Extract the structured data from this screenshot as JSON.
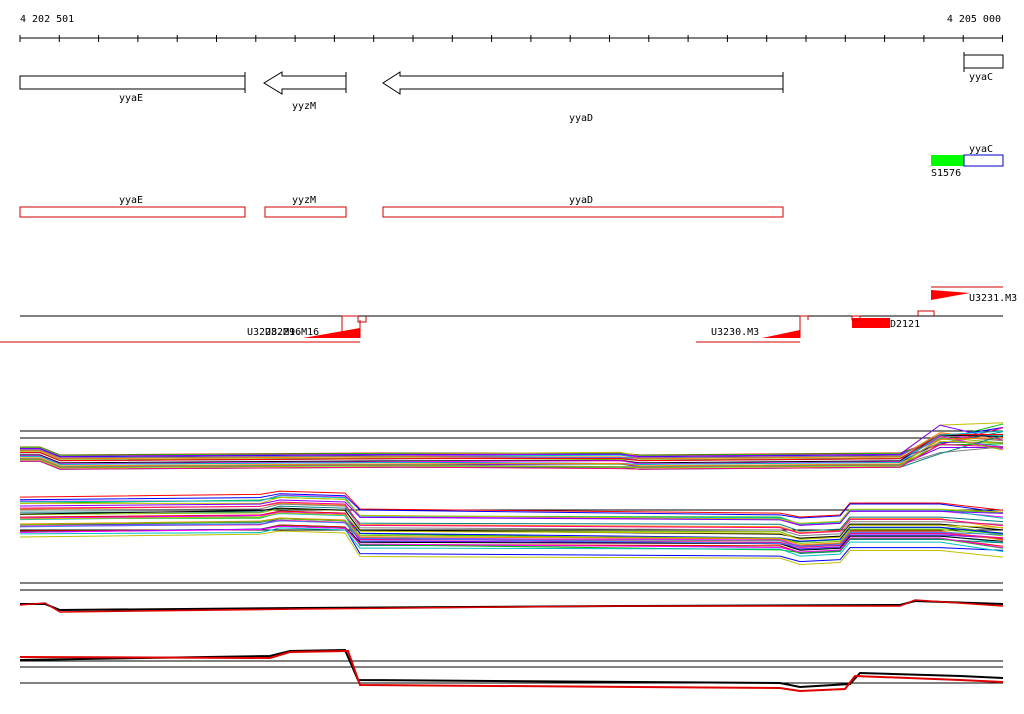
{
  "ruler": {
    "start": "4 202 501",
    "end": "4 205 000"
  },
  "genes": {
    "yyaE": "yyaE",
    "yyzM": "yyzM",
    "yyaD": "yyaD",
    "yyaC": "yyaC"
  },
  "track2": {
    "gene": "yyaC",
    "feature": "S1576"
  },
  "track3": {
    "yyaE": "yyaE",
    "yyzM": "yyzM",
    "yyaD": "yyaD"
  },
  "track4": {
    "a": "U3228.M16",
    "b": "U3229.M16",
    "c": "U3230.M3",
    "d": "D2121",
    "e": "U3231.M3"
  }
}
